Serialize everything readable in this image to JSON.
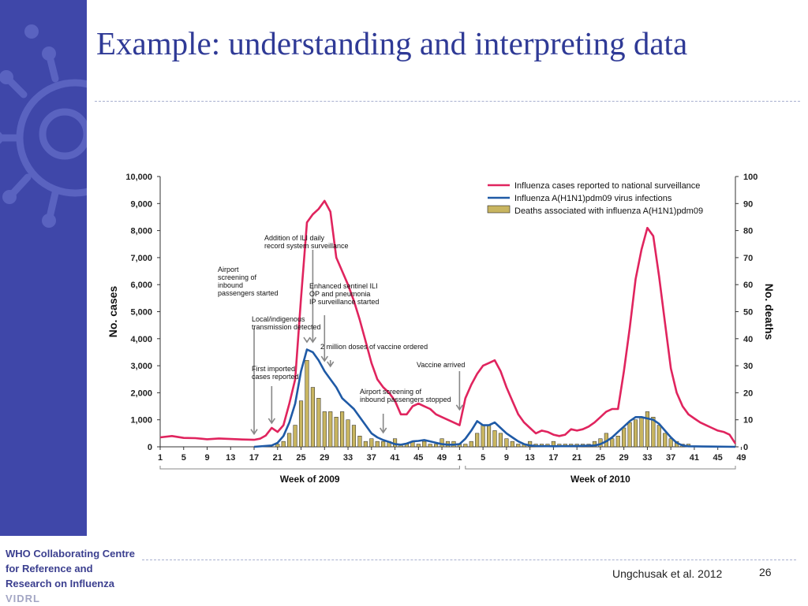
{
  "slide": {
    "title": "Example: understanding and interpreting data",
    "citation": "Ungchusak et al. 2012",
    "page_number": "26",
    "org_lines": [
      "WHO Collaborating Centre",
      "for Reference and",
      "Research on Influenza"
    ],
    "org_acronym": "VIDRL"
  },
  "colors": {
    "sidebar": "#3f47a9",
    "title": "#2f3a96",
    "cases_line": "#e0245e",
    "h1n1_line": "#1f5aa6",
    "deaths_bar": "#c8b560"
  },
  "chart_data": {
    "type": "line",
    "xlabel": "",
    "ylabel": "No. cases",
    "y2label": "No. deaths",
    "ylim": [
      0,
      10000
    ],
    "y2lim": [
      0,
      100
    ],
    "yticks": [
      "0",
      "1,000",
      "2,000",
      "3,000",
      "4,000",
      "5,000",
      "6,000",
      "7,000",
      "8,000",
      "9,000",
      "10,000"
    ],
    "y2ticks": [
      "0",
      "10",
      "20",
      "30",
      "40",
      "50",
      "60",
      "70",
      "80",
      "90",
      "100"
    ],
    "xticks": [
      "1",
      "5",
      "9",
      "13",
      "17",
      "21",
      "25",
      "29",
      "33",
      "37",
      "41",
      "45",
      "49",
      "1",
      "5",
      "9",
      "13",
      "17",
      "21",
      "25",
      "29",
      "33",
      "37",
      "41",
      "45",
      "49"
    ],
    "period_labels": [
      "Week of 2009",
      "Week of 2010"
    ],
    "legend": [
      "Influenza cases reported to national surveillance",
      "Influenza A(H1N1)pdm09 virus infections",
      "Deaths associated with influenza A(H1N1)pdm09"
    ],
    "legend_position": "top-right",
    "series": [
      {
        "name": "Influenza cases reported to national surveillance",
        "points": [
          [
            1,
            350
          ],
          [
            3,
            400
          ],
          [
            5,
            330
          ],
          [
            7,
            320
          ],
          [
            9,
            280
          ],
          [
            11,
            310
          ],
          [
            13,
            290
          ],
          [
            15,
            270
          ],
          [
            17,
            260
          ],
          [
            18,
            300
          ],
          [
            19,
            420
          ],
          [
            20,
            700
          ],
          [
            21,
            550
          ],
          [
            22,
            800
          ],
          [
            23,
            1600
          ],
          [
            24,
            2500
          ],
          [
            25,
            5500
          ],
          [
            26,
            8300
          ],
          [
            27,
            8600
          ],
          [
            28,
            8800
          ],
          [
            29,
            9100
          ],
          [
            30,
            8700
          ],
          [
            31,
            7000
          ],
          [
            32,
            6500
          ],
          [
            33,
            6000
          ],
          [
            34,
            5400
          ],
          [
            35,
            4700
          ],
          [
            36,
            3900
          ],
          [
            37,
            3100
          ],
          [
            38,
            2500
          ],
          [
            39,
            2200
          ],
          [
            40,
            2000
          ],
          [
            41,
            1700
          ],
          [
            42,
            1200
          ],
          [
            43,
            1200
          ],
          [
            44,
            1500
          ],
          [
            45,
            1600
          ],
          [
            46,
            1500
          ],
          [
            47,
            1400
          ],
          [
            48,
            1200
          ],
          [
            49,
            1100
          ],
          [
            50,
            1000
          ],
          [
            51,
            900
          ],
          [
            52,
            800
          ],
          [
            53,
            1800
          ],
          [
            54,
            2300
          ],
          [
            55,
            2700
          ],
          [
            56,
            3000
          ],
          [
            57,
            3100
          ],
          [
            58,
            3200
          ],
          [
            59,
            2800
          ],
          [
            60,
            2200
          ],
          [
            61,
            1700
          ],
          [
            62,
            1200
          ],
          [
            63,
            900
          ],
          [
            64,
            700
          ],
          [
            65,
            500
          ],
          [
            66,
            600
          ],
          [
            67,
            550
          ],
          [
            68,
            450
          ],
          [
            69,
            400
          ],
          [
            70,
            450
          ],
          [
            71,
            650
          ],
          [
            72,
            600
          ],
          [
            73,
            650
          ],
          [
            74,
            750
          ],
          [
            75,
            900
          ],
          [
            76,
            1100
          ],
          [
            77,
            1300
          ],
          [
            78,
            1400
          ],
          [
            79,
            1400
          ],
          [
            80,
            2800
          ],
          [
            81,
            4400
          ],
          [
            82,
            6200
          ],
          [
            83,
            7300
          ],
          [
            84,
            8100
          ],
          [
            85,
            7800
          ],
          [
            86,
            6300
          ],
          [
            87,
            4600
          ],
          [
            88,
            2900
          ],
          [
            89,
            2000
          ],
          [
            90,
            1500
          ],
          [
            91,
            1200
          ],
          [
            92,
            1050
          ],
          [
            93,
            900
          ],
          [
            94,
            800
          ],
          [
            95,
            700
          ],
          [
            96,
            600
          ],
          [
            97,
            550
          ],
          [
            98,
            450
          ],
          [
            99,
            120
          ]
        ]
      },
      {
        "name": "Influenza A(H1N1)pdm09 virus infections",
        "points": [
          [
            17,
            0
          ],
          [
            20,
            50
          ],
          [
            21,
            150
          ],
          [
            22,
            400
          ],
          [
            23,
            900
          ],
          [
            24,
            1600
          ],
          [
            25,
            2800
          ],
          [
            26,
            3600
          ],
          [
            27,
            3500
          ],
          [
            28,
            3200
          ],
          [
            29,
            2800
          ],
          [
            30,
            2500
          ],
          [
            31,
            2200
          ],
          [
            32,
            1800
          ],
          [
            33,
            1600
          ],
          [
            34,
            1400
          ],
          [
            35,
            1100
          ],
          [
            36,
            800
          ],
          [
            37,
            500
          ],
          [
            38,
            350
          ],
          [
            39,
            250
          ],
          [
            40,
            180
          ],
          [
            41,
            100
          ],
          [
            42,
            80
          ],
          [
            43,
            120
          ],
          [
            44,
            200
          ],
          [
            45,
            220
          ],
          [
            46,
            250
          ],
          [
            47,
            200
          ],
          [
            48,
            150
          ],
          [
            49,
            100
          ],
          [
            50,
            80
          ],
          [
            51,
            80
          ],
          [
            52,
            100
          ],
          [
            53,
            300
          ],
          [
            54,
            600
          ],
          [
            55,
            950
          ],
          [
            56,
            800
          ],
          [
            57,
            800
          ],
          [
            58,
            900
          ],
          [
            59,
            700
          ],
          [
            60,
            500
          ],
          [
            61,
            350
          ],
          [
            62,
            200
          ],
          [
            63,
            100
          ],
          [
            64,
            50
          ],
          [
            65,
            30
          ],
          [
            68,
            20
          ],
          [
            72,
            30
          ],
          [
            75,
            50
          ],
          [
            76,
            100
          ],
          [
            77,
            200
          ],
          [
            78,
            350
          ],
          [
            79,
            550
          ],
          [
            80,
            750
          ],
          [
            81,
            950
          ],
          [
            82,
            1100
          ],
          [
            83,
            1100
          ],
          [
            84,
            1050
          ],
          [
            85,
            1000
          ],
          [
            86,
            850
          ],
          [
            87,
            600
          ],
          [
            88,
            350
          ],
          [
            89,
            150
          ],
          [
            90,
            50
          ],
          [
            91,
            20
          ],
          [
            95,
            10
          ],
          [
            99,
            0
          ]
        ]
      }
    ],
    "bars": {
      "name": "Deaths associated with influenza A(H1N1)pdm09",
      "points": [
        [
          21,
          1
        ],
        [
          22,
          2
        ],
        [
          23,
          5
        ],
        [
          24,
          8
        ],
        [
          25,
          17
        ],
        [
          26,
          32
        ],
        [
          27,
          22
        ],
        [
          28,
          18
        ],
        [
          29,
          13
        ],
        [
          30,
          13
        ],
        [
          31,
          11
        ],
        [
          32,
          13
        ],
        [
          33,
          10
        ],
        [
          34,
          8
        ],
        [
          35,
          4
        ],
        [
          36,
          2
        ],
        [
          37,
          3
        ],
        [
          38,
          2
        ],
        [
          39,
          2
        ],
        [
          40,
          2
        ],
        [
          41,
          3
        ],
        [
          42,
          1
        ],
        [
          43,
          1
        ],
        [
          44,
          2
        ],
        [
          45,
          1
        ],
        [
          46,
          2
        ],
        [
          47,
          1
        ],
        [
          48,
          1
        ],
        [
          49,
          3
        ],
        [
          50,
          2
        ],
        [
          51,
          2
        ],
        [
          52,
          1
        ],
        [
          53,
          1
        ],
        [
          54,
          2
        ],
        [
          55,
          5
        ],
        [
          56,
          8
        ],
        [
          57,
          8
        ],
        [
          58,
          6
        ],
        [
          59,
          5
        ],
        [
          60,
          3
        ],
        [
          61,
          2
        ],
        [
          62,
          1
        ],
        [
          63,
          1
        ],
        [
          64,
          2
        ],
        [
          65,
          1
        ],
        [
          66,
          1
        ],
        [
          67,
          1
        ],
        [
          68,
          2
        ],
        [
          69,
          1
        ],
        [
          70,
          1
        ],
        [
          71,
          1
        ],
        [
          72,
          1
        ],
        [
          73,
          1
        ],
        [
          74,
          1
        ],
        [
          75,
          2
        ],
        [
          76,
          3
        ],
        [
          77,
          5
        ],
        [
          78,
          3
        ],
        [
          79,
          4
        ],
        [
          80,
          7
        ],
        [
          81,
          9
        ],
        [
          82,
          10
        ],
        [
          83,
          11
        ],
        [
          84,
          13
        ],
        [
          85,
          11
        ],
        [
          86,
          8
        ],
        [
          87,
          5
        ],
        [
          88,
          3
        ],
        [
          89,
          2
        ],
        [
          90,
          1
        ],
        [
          91,
          1
        ]
      ]
    },
    "annotations": [
      {
        "text": "Airport screening of inbound passengers started",
        "week": 17
      },
      {
        "text": "First imported cases reported",
        "week": 20
      },
      {
        "text": "Local/indigenous transmission detected",
        "week": 26
      },
      {
        "text": "Addition of ILI daily record system surveillance",
        "week": 27
      },
      {
        "text": "Enhanced sentinel ILI OP and pneumonia IP surveillance started",
        "week": 29
      },
      {
        "text": "2 million doses of vaccine ordered",
        "week": 30
      },
      {
        "text": "Airport screening of inbound passengers stopped",
        "week": 39
      },
      {
        "text": "Vaccine arrived",
        "week": 52
      }
    ]
  }
}
